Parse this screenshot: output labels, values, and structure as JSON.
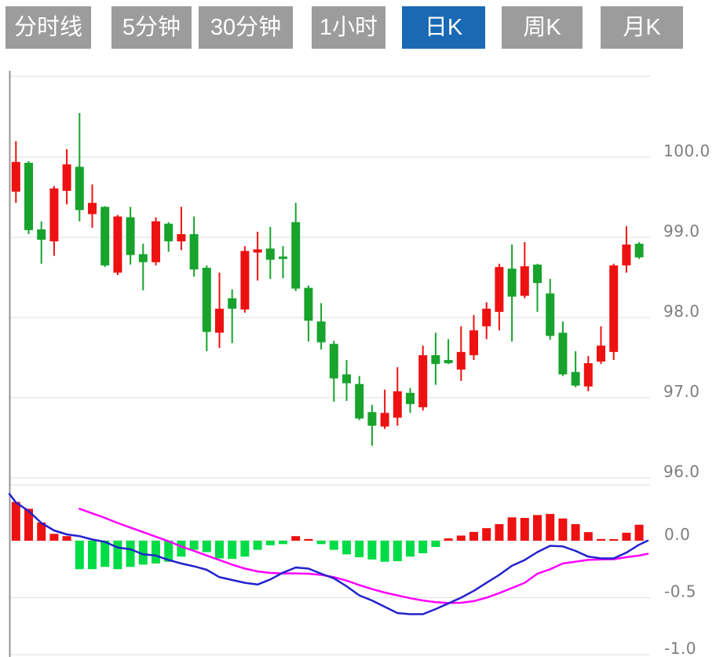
{
  "tabs": {
    "items": [
      {
        "id": "timeline",
        "label": "分时线",
        "selected": false
      },
      {
        "id": "5min",
        "label": "5分钟",
        "selected": false
      },
      {
        "id": "30min",
        "label": "30分钟",
        "selected": false
      },
      {
        "id": "1hour",
        "label": "1小时",
        "selected": false
      },
      {
        "id": "daily-k",
        "label": "日K",
        "selected": true
      },
      {
        "id": "weekly-k",
        "label": "周K",
        "selected": false
      },
      {
        "id": "monthly-k",
        "label": "月K",
        "selected": false
      }
    ]
  },
  "colors": {
    "tab_selected": "#1a69b4",
    "tab_unselected": "#9c9c9c",
    "up": "#ee1111",
    "down": "#17a32c",
    "macd_positive": "#ee1111",
    "macd_negative": "#00dc46",
    "dif_line": "#2222cc",
    "dea_line": "#ff00ff",
    "gridline": "#e4e4e4",
    "axis_border": "#969696",
    "axis_label": "#7d7d7d"
  },
  "chart_data": {
    "type": "candlestick",
    "title": "",
    "legend_position": "none",
    "grid": true,
    "panels": [
      {
        "name": "price",
        "ylabel": "",
        "yticks": [
          100.0,
          99.0,
          98.0,
          97.0,
          96.0
        ],
        "ytick_labels": [
          "100.0",
          "99.0",
          "98.0",
          "97.0",
          "96.0"
        ],
        "ylim": [
          95.9,
          101.0
        ],
        "candles": [
          {
            "o": 99.57,
            "h": 100.2,
            "l": 99.43,
            "c": 99.94
          },
          {
            "o": 99.93,
            "h": 99.95,
            "l": 99.04,
            "c": 99.09
          },
          {
            "o": 99.1,
            "h": 99.2,
            "l": 98.67,
            "c": 98.97
          },
          {
            "o": 98.95,
            "h": 99.64,
            "l": 98.77,
            "c": 99.61
          },
          {
            "o": 99.58,
            "h": 100.1,
            "l": 99.41,
            "c": 99.91
          },
          {
            "o": 99.88,
            "h": 100.55,
            "l": 99.2,
            "c": 99.34
          },
          {
            "o": 99.29,
            "h": 99.66,
            "l": 99.12,
            "c": 99.43
          },
          {
            "o": 99.38,
            "h": 99.39,
            "l": 98.63,
            "c": 98.65
          },
          {
            "o": 98.56,
            "h": 99.28,
            "l": 98.53,
            "c": 99.26
          },
          {
            "o": 99.25,
            "h": 99.38,
            "l": 98.66,
            "c": 98.78
          },
          {
            "o": 98.79,
            "h": 98.92,
            "l": 98.34,
            "c": 98.69
          },
          {
            "o": 98.69,
            "h": 99.25,
            "l": 98.65,
            "c": 99.2
          },
          {
            "o": 99.17,
            "h": 99.19,
            "l": 98.82,
            "c": 98.95
          },
          {
            "o": 98.95,
            "h": 99.38,
            "l": 98.84,
            "c": 99.04
          },
          {
            "o": 99.04,
            "h": 99.26,
            "l": 98.51,
            "c": 98.6
          },
          {
            "o": 98.62,
            "h": 98.65,
            "l": 97.58,
            "c": 97.82
          },
          {
            "o": 97.81,
            "h": 98.56,
            "l": 97.62,
            "c": 98.11
          },
          {
            "o": 98.24,
            "h": 98.35,
            "l": 97.68,
            "c": 98.11
          },
          {
            "o": 98.1,
            "h": 98.89,
            "l": 98.06,
            "c": 98.83
          },
          {
            "o": 98.81,
            "h": 99.07,
            "l": 98.46,
            "c": 98.85
          },
          {
            "o": 98.86,
            "h": 99.13,
            "l": 98.48,
            "c": 98.72
          },
          {
            "o": 98.76,
            "h": 98.89,
            "l": 98.49,
            "c": 98.73
          },
          {
            "o": 99.19,
            "h": 99.43,
            "l": 98.33,
            "c": 98.36
          },
          {
            "o": 98.37,
            "h": 98.4,
            "l": 97.7,
            "c": 97.96
          },
          {
            "o": 97.95,
            "h": 98.18,
            "l": 97.6,
            "c": 97.69
          },
          {
            "o": 97.67,
            "h": 97.71,
            "l": 96.95,
            "c": 97.24
          },
          {
            "o": 97.29,
            "h": 97.47,
            "l": 96.96,
            "c": 97.18
          },
          {
            "o": 97.17,
            "h": 97.27,
            "l": 96.72,
            "c": 96.74
          },
          {
            "o": 96.82,
            "h": 96.91,
            "l": 96.4,
            "c": 96.65
          },
          {
            "o": 96.64,
            "h": 97.1,
            "l": 96.61,
            "c": 96.81
          },
          {
            "o": 96.75,
            "h": 97.38,
            "l": 96.65,
            "c": 97.08
          },
          {
            "o": 97.06,
            "h": 97.12,
            "l": 96.81,
            "c": 96.92
          },
          {
            "o": 96.88,
            "h": 97.65,
            "l": 96.84,
            "c": 97.53
          },
          {
            "o": 97.53,
            "h": 97.81,
            "l": 97.16,
            "c": 97.42
          },
          {
            "o": 97.47,
            "h": 97.73,
            "l": 97.42,
            "c": 97.43
          },
          {
            "o": 97.35,
            "h": 97.89,
            "l": 97.21,
            "c": 97.57
          },
          {
            "o": 97.53,
            "h": 98.03,
            "l": 97.47,
            "c": 97.84
          },
          {
            "o": 97.89,
            "h": 98.19,
            "l": 97.73,
            "c": 98.11
          },
          {
            "o": 98.07,
            "h": 98.67,
            "l": 97.84,
            "c": 98.63
          },
          {
            "o": 98.61,
            "h": 98.91,
            "l": 97.7,
            "c": 98.26
          },
          {
            "o": 98.27,
            "h": 98.94,
            "l": 98.24,
            "c": 98.64
          },
          {
            "o": 98.66,
            "h": 98.67,
            "l": 98.07,
            "c": 98.43
          },
          {
            "o": 98.3,
            "h": 98.48,
            "l": 97.72,
            "c": 97.77
          },
          {
            "o": 97.81,
            "h": 97.95,
            "l": 97.27,
            "c": 97.29
          },
          {
            "o": 97.32,
            "h": 97.58,
            "l": 97.13,
            "c": 97.15
          },
          {
            "o": 97.14,
            "h": 97.52,
            "l": 97.08,
            "c": 97.43
          },
          {
            "o": 97.45,
            "h": 97.89,
            "l": 97.42,
            "c": 97.65
          },
          {
            "o": 97.57,
            "h": 98.67,
            "l": 97.47,
            "c": 98.65
          },
          {
            "o": 98.65,
            "h": 99.14,
            "l": 98.56,
            "c": 98.91
          },
          {
            "o": 98.92,
            "h": 98.94,
            "l": 98.73,
            "c": 98.75
          }
        ]
      },
      {
        "name": "macd",
        "ylabel": "",
        "yticks": [
          0.0,
          -0.5,
          -1.0
        ],
        "ytick_labels": [
          "0.0",
          "-0.5",
          "-1.0"
        ],
        "ylim": [
          -1.02,
          0.49
        ],
        "histogram": [
          0.34,
          0.28,
          0.16,
          0.06,
          0.04,
          -0.25,
          -0.25,
          -0.23,
          -0.25,
          -0.23,
          -0.21,
          -0.2,
          -0.185,
          -0.14,
          -0.08,
          -0.1,
          -0.155,
          -0.16,
          -0.14,
          -0.08,
          -0.04,
          -0.03,
          0.04,
          0.015,
          -0.03,
          -0.08,
          -0.12,
          -0.145,
          -0.165,
          -0.185,
          -0.18,
          -0.14,
          -0.11,
          -0.055,
          0.02,
          0.045,
          0.077,
          0.11,
          0.145,
          0.205,
          0.2,
          0.225,
          0.235,
          0.195,
          0.145,
          0.075,
          0.015,
          0.012,
          0.07,
          0.14
        ],
        "dif": [
          0.335,
          0.26,
          0.155,
          0.09,
          0.055,
          0.04,
          0.01,
          -0.01,
          -0.06,
          -0.075,
          -0.12,
          -0.13,
          -0.17,
          -0.2,
          -0.225,
          -0.255,
          -0.32,
          -0.345,
          -0.37,
          -0.385,
          -0.34,
          -0.28,
          -0.235,
          -0.245,
          -0.29,
          -0.33,
          -0.4,
          -0.48,
          -0.525,
          -0.58,
          -0.635,
          -0.645,
          -0.645,
          -0.6,
          -0.55,
          -0.5,
          -0.44,
          -0.37,
          -0.3,
          -0.22,
          -0.17,
          -0.1,
          -0.045,
          -0.05,
          -0.09,
          -0.14,
          -0.155,
          -0.155,
          -0.105,
          -0.035
        ],
        "dea": [
          null,
          null,
          null,
          null,
          null,
          0.28,
          0.24,
          0.2,
          0.155,
          0.115,
          0.075,
          0.035,
          -0.005,
          -0.05,
          -0.09,
          -0.13,
          -0.17,
          -0.21,
          -0.245,
          -0.27,
          -0.283,
          -0.287,
          -0.287,
          -0.29,
          -0.3,
          -0.32,
          -0.35,
          -0.39,
          -0.425,
          -0.455,
          -0.48,
          -0.505,
          -0.525,
          -0.54,
          -0.547,
          -0.545,
          -0.53,
          -0.5,
          -0.46,
          -0.415,
          -0.37,
          -0.29,
          -0.25,
          -0.2,
          -0.185,
          -0.168,
          -0.165,
          -0.163,
          -0.145,
          -0.13
        ],
        "dif_lead": 0.41,
        "dif_end": 0.0,
        "dea_end": -0.115
      }
    ]
  }
}
